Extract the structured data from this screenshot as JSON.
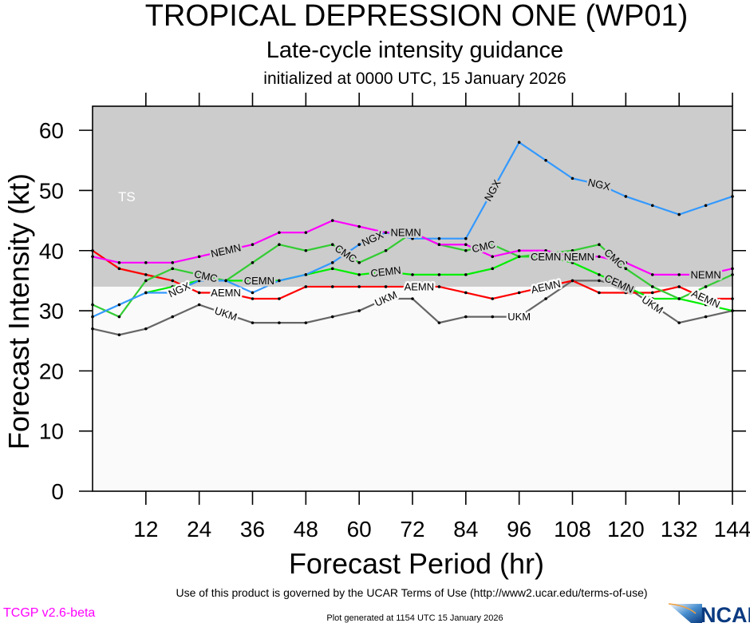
{
  "chart_data": {
    "type": "line",
    "title": "TROPICAL DEPRESSION ONE (WP01)",
    "subtitle": "Late-cycle intensity guidance",
    "subtitle2": "initialized at 0000 UTC, 15 January 2026",
    "xlabel": "Forecast Period (hr)",
    "ylabel": "Forecast Intensity (kt)",
    "xlim": [
      0,
      144
    ],
    "ylim": [
      0,
      64
    ],
    "xticks": [
      12,
      24,
      36,
      48,
      60,
      72,
      84,
      96,
      108,
      120,
      132,
      144
    ],
    "yticks": [
      0,
      10,
      20,
      30,
      40,
      50,
      60
    ],
    "grid": false,
    "band": {
      "label": "TS",
      "from": 34,
      "to": 64,
      "color": "#cccccc"
    },
    "x": [
      0,
      6,
      12,
      18,
      24,
      30,
      36,
      42,
      48,
      54,
      60,
      66,
      72,
      78,
      84,
      90,
      96,
      102,
      108,
      114,
      120,
      126,
      132,
      138,
      144
    ],
    "series": [
      {
        "name": "UKM",
        "color": "#666666",
        "label_at": [
          30,
          66,
          96,
          126
        ],
        "values": [
          27,
          26,
          27,
          29,
          31,
          29.5,
          28,
          28,
          28,
          29,
          30,
          32,
          32,
          28,
          29,
          29,
          29,
          32,
          35,
          35,
          34,
          31,
          28,
          29,
          30
        ]
      },
      {
        "name": "AEMN",
        "color": "#ff0000",
        "label_at": [
          30,
          66,
          102,
          138
        ],
        "values": [
          40,
          37,
          36,
          35,
          33,
          33,
          32,
          32,
          34,
          34,
          34,
          34,
          34,
          34,
          33,
          32,
          33,
          34,
          35,
          33,
          33,
          33,
          34,
          32,
          32
        ]
      },
      {
        "name": "CEMN",
        "color": "#00ee00",
        "label_at": [
          30,
          66,
          102,
          138
        ],
        "values": [
          null,
          null,
          33,
          34,
          35,
          35,
          35,
          35,
          36,
          37,
          36,
          36.5,
          36,
          36,
          36,
          37,
          39,
          39,
          38,
          36,
          34,
          32,
          32,
          31,
          30
        ]
      },
      {
        "name": "CMC",
        "color": "#33cc33",
        "label_at": [
          30,
          57,
          88,
          122
        ],
        "values": [
          31,
          29,
          35,
          37,
          36,
          35,
          38,
          41,
          40,
          41,
          38,
          40,
          43,
          41,
          40,
          41,
          39,
          39.5,
          40,
          41,
          37,
          34,
          32,
          34,
          36
        ]
      },
      {
        "name": "NGX",
        "color": "#3399ff",
        "label_at": [
          30,
          60,
          90,
          114
        ],
        "values": [
          29,
          31,
          33,
          33,
          35,
          35,
          33,
          35,
          36,
          38,
          41,
          43,
          42,
          42,
          42,
          50,
          58,
          55,
          52,
          51,
          49,
          47.5,
          46,
          47.5,
          49
        ]
      },
      {
        "name": "NEMN",
        "color": "#ff00ff",
        "label_at": [
          30,
          66,
          102,
          138
        ],
        "values": [
          39,
          38,
          38,
          38,
          39,
          40,
          41,
          43,
          43,
          45,
          44,
          43,
          43,
          41,
          41,
          39,
          40,
          40,
          39,
          39,
          38,
          36,
          36,
          36,
          37
        ]
      }
    ]
  },
  "footer": {
    "terms": "Use of this product is governed by the UCAR Terms of Use (http://www2.ucar.edu/terms-of-use)",
    "version": "TCGP v2.6-beta",
    "generated": "Plot generated at 1154 UTC   15 January 2026",
    "logo": "NCAR"
  }
}
